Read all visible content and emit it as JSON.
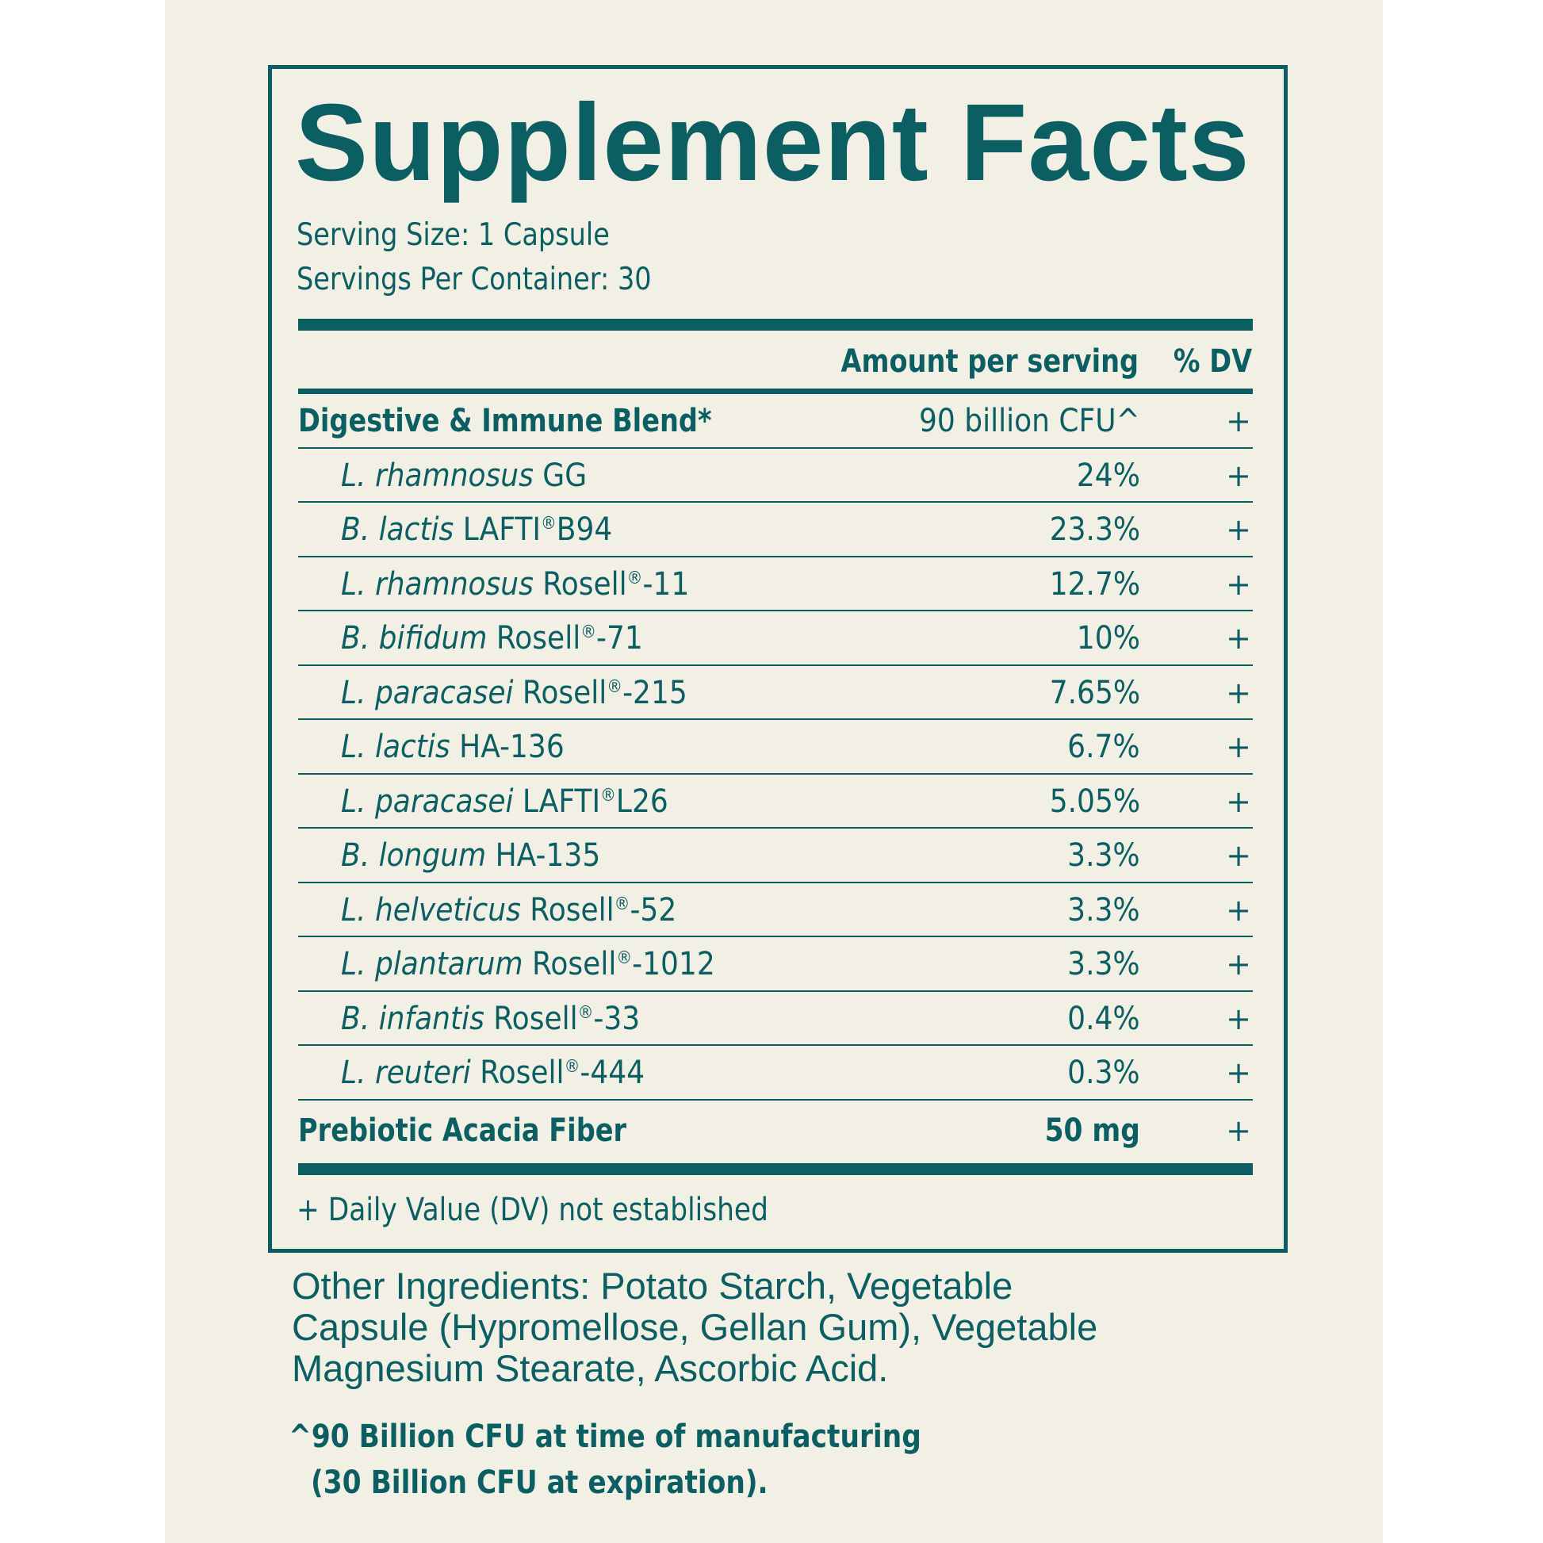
{
  "label": {
    "title": "Supplement Facts",
    "serving_size": "Serving Size: 1 Capsule",
    "servings_per_container": "Servings Per Container: 30",
    "header_amount": "Amount per serving",
    "header_dv": "% DV",
    "blend": {
      "name": "Digestive & Immune Blend*",
      "amount": "90 billion CFU^",
      "dv": "+"
    },
    "strains": [
      {
        "species": "L. rhamnosus",
        "strain": "GG",
        "reg": "",
        "suffix": "",
        "amount": "24%",
        "dv": "+"
      },
      {
        "species": "B. lactis",
        "strain": "LAFTI",
        "reg": "®",
        "suffix": "B94",
        "amount": "23.3%",
        "dv": "+"
      },
      {
        "species": "L. rhamnosus",
        "strain": "Rosell",
        "reg": "®",
        "suffix": "-11",
        "amount": "12.7%",
        "dv": "+"
      },
      {
        "species": "B. bifidum",
        "strain": "Rosell",
        "reg": "®",
        "suffix": "-71",
        "amount": "10%",
        "dv": "+"
      },
      {
        "species": "L. paracasei",
        "strain": "Rosell",
        "reg": "®",
        "suffix": "-215",
        "amount": "7.65%",
        "dv": "+"
      },
      {
        "species": "L. lactis",
        "strain": "HA-136",
        "reg": "",
        "suffix": "",
        "amount": "6.7%",
        "dv": "+"
      },
      {
        "species": "L. paracasei",
        "strain": "LAFTI",
        "reg": "®",
        "suffix": "L26",
        "amount": "5.05%",
        "dv": "+"
      },
      {
        "species": "B. longum",
        "strain": "HA-135",
        "reg": "",
        "suffix": "",
        "amount": "3.3%",
        "dv": "+"
      },
      {
        "species": "L. helveticus",
        "strain": "Rosell",
        "reg": "®",
        "suffix": "-52",
        "amount": "3.3%",
        "dv": "+"
      },
      {
        "species": "L. plantarum",
        "strain": "Rosell",
        "reg": "®",
        "suffix": "-1012",
        "amount": "3.3%",
        "dv": "+"
      },
      {
        "species": "B. infantis",
        "strain": "Rosell",
        "reg": "®",
        "suffix": "-33",
        "amount": "0.4%",
        "dv": "+"
      },
      {
        "species": "L. reuteri",
        "strain": "Rosell",
        "reg": "®",
        "suffix": "-444",
        "amount": "0.3%",
        "dv": "+"
      }
    ],
    "fiber": {
      "name": "Prebiotic Acacia Fiber",
      "amount": "50 mg",
      "dv": "+"
    },
    "dv_note": "+ Daily Value (DV) not established"
  },
  "other_ingredients": {
    "lines": [
      "Other Ingredients:  Potato Starch, Vegetable",
      "Capsule (Hypromellose, Gellan Gum), Vegetable",
      "Magnesium Stearate, Ascorbic Acid."
    ]
  },
  "cfu_note": {
    "line1": "^90 Billion CFU at time of manufacturing",
    "line2": "(30 Billion CFU at expiration)."
  },
  "colors": {
    "ink": "#0b5f63",
    "background": "#f2f0e5"
  }
}
